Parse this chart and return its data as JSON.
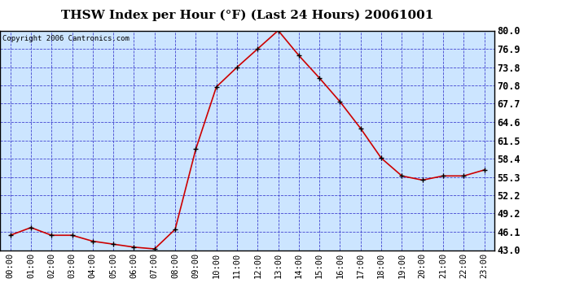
{
  "title": "THSW Index per Hour (°F) (Last 24 Hours) 20061001",
  "copyright": "Copyright 2006 Cantronics.com",
  "hours": [
    0,
    1,
    2,
    3,
    4,
    5,
    6,
    7,
    8,
    9,
    10,
    11,
    12,
    13,
    14,
    15,
    16,
    17,
    18,
    19,
    20,
    21,
    22,
    23
  ],
  "hour_labels": [
    "00:00",
    "01:00",
    "02:00",
    "03:00",
    "04:00",
    "05:00",
    "06:00",
    "07:00",
    "08:00",
    "09:00",
    "10:00",
    "11:00",
    "12:00",
    "13:00",
    "14:00",
    "15:00",
    "16:00",
    "17:00",
    "18:00",
    "19:00",
    "20:00",
    "21:00",
    "22:00",
    "23:00"
  ],
  "values": [
    45.5,
    46.8,
    45.5,
    45.5,
    44.5,
    44.0,
    43.5,
    43.2,
    46.5,
    60.0,
    70.5,
    73.8,
    76.9,
    80.0,
    75.8,
    72.0,
    68.0,
    63.5,
    58.5,
    55.5,
    54.8,
    55.5,
    55.5,
    56.5
  ],
  "line_color": "#cc0000",
  "marker_color": "#000000",
  "plot_area_bg": "#cce5ff",
  "outer_bg": "#ffffff",
  "grid_color": "#3333cc",
  "title_color": "#000000",
  "border_color": "#000000",
  "ylim": [
    43.0,
    80.0
  ],
  "yticks": [
    43.0,
    46.1,
    49.2,
    52.2,
    55.3,
    58.4,
    61.5,
    64.6,
    67.7,
    70.8,
    73.8,
    76.9,
    80.0
  ],
  "title_fontsize": 11,
  "tick_fontsize": 7.5,
  "ylabel_fontsize": 8.5,
  "copyright_fontsize": 6.5
}
